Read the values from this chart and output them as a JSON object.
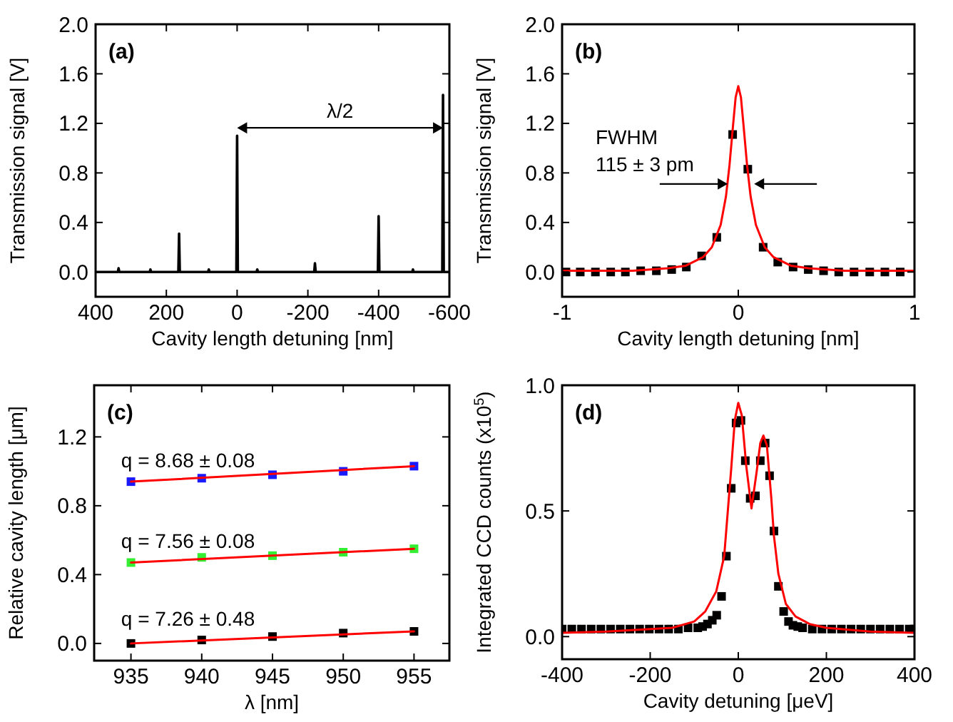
{
  "chart_data": [
    {
      "type": "line",
      "title": "(a)",
      "xlabel": "Cavity length detuning [nm]",
      "ylabel": "Transmission signal [V]",
      "xlim": [
        400,
        -600
      ],
      "xticks": [
        400,
        200,
        0,
        -200,
        -400,
        -600
      ],
      "ylim": [
        -0.2,
        2.0
      ],
      "yticks": [
        {
          "value": 0,
          "label": "0.0"
        },
        0.4,
        0.8,
        1.2,
        1.6,
        {
          "value": 2,
          "label": "2.0"
        }
      ],
      "annotations": [
        "λ/2"
      ],
      "series": [
        {
          "color": "#000000",
          "x": [
            400,
            337,
            335,
            333,
            247,
            245,
            243,
            166,
            164,
            162,
            82,
            80,
            78,
            2,
            0,
            -2,
            -55,
            -57,
            -59,
            -218,
            -220,
            -222,
            -398,
            -400,
            -402,
            -495,
            -497,
            -499,
            -580,
            -582,
            -584,
            -600
          ],
          "values": [
            0,
            0,
            0.03,
            0,
            0,
            0.02,
            0,
            0,
            0.31,
            0,
            0,
            0.02,
            0,
            0,
            1.1,
            0,
            0,
            0.02,
            0,
            0,
            0.07,
            0,
            0,
            0.45,
            0,
            0,
            0.02,
            0,
            0,
            1.43,
            0,
            0
          ]
        }
      ]
    },
    {
      "type": "scatter",
      "title": "(b)",
      "xlabel": "Cavity length detuning [nm]",
      "ylabel": "Transmission signal [V]",
      "xlim": [
        -1,
        1
      ],
      "xticks": [
        -1,
        0,
        1
      ],
      "ylim": [
        -0.2,
        2.0
      ],
      "yticks": [
        {
          "value": 0,
          "label": "0.0"
        },
        0.4,
        0.8,
        1.2,
        1.6,
        {
          "value": 2,
          "label": "2.0"
        }
      ],
      "annotations": [
        "FWHM",
        "115 ± 3 pm"
      ],
      "series": [
        {
          "color": "#000000",
          "marker": "square",
          "x": [
            -0.978,
            -0.897,
            -0.811,
            -0.724,
            -0.641,
            -0.554,
            -0.465,
            -0.378,
            -0.295,
            -0.208,
            -0.122,
            -0.032,
            0.054,
            0.141,
            0.224,
            0.311,
            0.397,
            0.484,
            0.57,
            0.657,
            0.746,
            0.832,
            0.919
          ],
          "values": [
            0,
            0,
            0,
            0,
            0,
            0.01,
            0.01,
            0.02,
            0.04,
            0.13,
            0.28,
            1.11,
            0.83,
            0.2,
            0.08,
            0.04,
            0.02,
            0.01,
            0,
            0,
            0,
            0,
            0
          ]
        },
        {
          "type": "line",
          "color": "#ff0000",
          "x": [
            -1,
            -0.6,
            -0.4,
            -0.3,
            -0.2,
            -0.15,
            -0.1,
            -0.07,
            -0.05,
            -0.03,
            -0.015,
            0,
            0.015,
            0.03,
            0.05,
            0.07,
            0.1,
            0.15,
            0.2,
            0.3,
            0.4,
            0.6,
            1
          ],
          "values": [
            0.01,
            0.01,
            0.03,
            0.05,
            0.12,
            0.2,
            0.38,
            0.61,
            0.86,
            1.18,
            1.41,
            1.5,
            1.41,
            1.18,
            0.86,
            0.61,
            0.38,
            0.2,
            0.12,
            0.05,
            0.03,
            0.01,
            0.01
          ]
        }
      ]
    },
    {
      "type": "scatter",
      "title": "(c)",
      "xlabel": "λ [nm]",
      "ylabel": "Relative cavity length [μm]",
      "xlim": [
        932.4,
        957.5
      ],
      "xticks": [
        935,
        940,
        945,
        950,
        955
      ],
      "ylim": [
        -0.1,
        1.5
      ],
      "yticks": [
        {
          "value": 0,
          "label": "0.0"
        },
        0.4,
        0.8,
        1.2
      ],
      "annotations": [
        "q = 8.68 ± 0.08",
        "q = 7.56 ± 0.08",
        "q = 7.26 ± 0.48"
      ],
      "series": [
        {
          "color": "#1a1aff",
          "marker": "square",
          "x": [
            935,
            940,
            945,
            950,
            955
          ],
          "values": [
            0.94,
            0.96,
            0.98,
            1.0,
            1.03
          ]
        },
        {
          "color": "#33ee33",
          "marker": "square",
          "x": [
            935,
            940,
            945,
            950,
            955
          ],
          "values": [
            0.47,
            0.5,
            0.51,
            0.53,
            0.55
          ]
        },
        {
          "color": "#000000",
          "marker": "square",
          "x": [
            935,
            940,
            945,
            950,
            955
          ],
          "values": [
            0,
            0.02,
            0.04,
            0.06,
            0.07
          ]
        },
        {
          "type": "line",
          "color": "#ff0000",
          "x": [
            935,
            955
          ],
          "values": [
            0.94,
            1.03
          ]
        },
        {
          "type": "line",
          "color": "#ff0000",
          "x": [
            935,
            955
          ],
          "values": [
            0.47,
            0.55
          ]
        },
        {
          "type": "line",
          "color": "#ff0000",
          "x": [
            935,
            955
          ],
          "values": [
            0,
            0.07
          ]
        }
      ]
    },
    {
      "type": "scatter",
      "title": "(d)",
      "xlabel": "Cavity detuning [μeV]",
      "ylabel": "Integrated CCD counts (x10$^{5}$)",
      "xlim": [
        -400,
        400
      ],
      "xticks": [
        -400,
        -200,
        0,
        200,
        400
      ],
      "ylim": [
        -0.09,
        1.0
      ],
      "yticks": [
        {
          "value": 0,
          "label": "0.0"
        },
        0.5,
        {
          "value": 1,
          "label": "1.0"
        }
      ],
      "series": [
        {
          "color": "#000000",
          "marker": "square",
          "x": [
            -400,
            -378,
            -356,
            -334,
            -312,
            -290,
            -268,
            -246,
            -224,
            -202,
            -180,
            -158,
            -136,
            -114,
            -92,
            -81,
            -70,
            -59,
            -49,
            -38,
            -27,
            -16,
            -5,
            6,
            16,
            27,
            39,
            50,
            61,
            71,
            81,
            91,
            103,
            114,
            124,
            135,
            146,
            168,
            190,
            212,
            234,
            256,
            278,
            300,
            322,
            344,
            366,
            388,
            400
          ],
          "values": [
            0.03,
            0.03,
            0.03,
            0.03,
            0.03,
            0.03,
            0.03,
            0.03,
            0.03,
            0.03,
            0.03,
            0.03,
            0.03,
            0.035,
            0.035,
            0.04,
            0.05,
            0.065,
            0.085,
            0.16,
            0.32,
            0.59,
            0.85,
            0.86,
            0.7,
            0.55,
            0.56,
            0.7,
            0.77,
            0.64,
            0.42,
            0.2,
            0.1,
            0.06,
            0.045,
            0.04,
            0.035,
            0.03,
            0.03,
            0.03,
            0.03,
            0.03,
            0.03,
            0.03,
            0.03,
            0.03,
            0.03,
            0.03,
            0.03
          ]
        },
        {
          "type": "line",
          "color": "#ff0000",
          "x": [
            -400,
            -300,
            -200,
            -150,
            -100,
            -75,
            -50,
            -32,
            -16,
            -8,
            0,
            8,
            18,
            30,
            42,
            50,
            57,
            65,
            75,
            81,
            91,
            108,
            130,
            162,
            200,
            300,
            400
          ],
          "values": [
            0.015,
            0.02,
            0.03,
            0.035,
            0.06,
            0.1,
            0.18,
            0.32,
            0.67,
            0.86,
            0.93,
            0.88,
            0.68,
            0.51,
            0.66,
            0.77,
            0.8,
            0.76,
            0.55,
            0.4,
            0.25,
            0.13,
            0.08,
            0.05,
            0.035,
            0.02,
            0.015
          ]
        }
      ]
    }
  ]
}
